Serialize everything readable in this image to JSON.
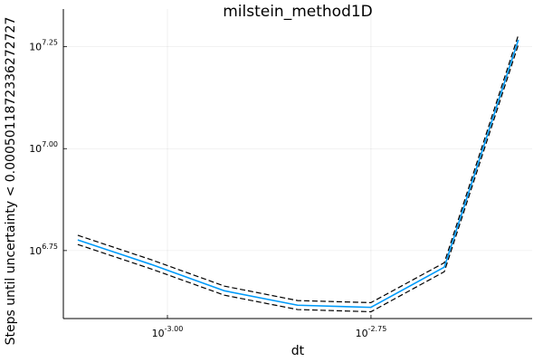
{
  "chart_data": {
    "type": "line",
    "title": "milstein_method1D",
    "x_label": "dt",
    "y_label": "Steps until uncertainty < 0.0005011872336272727",
    "x_scale": "log",
    "y_scale": "log",
    "grid": true,
    "x": [
      0.000776,
      0.000955,
      0.001175,
      0.001445,
      0.001778,
      0.002188,
      0.002698
    ],
    "series": [
      {
        "color": "#009af9",
        "dashed": false,
        "values": [
          5970000,
          5200000,
          4480000,
          4130000,
          4080000,
          5120000,
          18490000
        ]
      },
      {
        "color": "#000000",
        "dashed": true,
        "values": [
          6130000,
          5340000,
          4600000,
          4240000,
          4190000,
          5250000,
          19000000
        ]
      },
      {
        "color": "#000000",
        "dashed": true,
        "values": [
          5820000,
          5070000,
          4370000,
          4030000,
          3980000,
          4990000,
          18000000
        ]
      }
    ],
    "xlim": [
      0.000745,
      0.002805
    ],
    "ylim": [
      3830000,
      22000000
    ],
    "xticks": [
      {
        "value": 0.001,
        "label": "10",
        "exponent": "-3.00"
      },
      {
        "value": 0.0017783,
        "label": "10",
        "exponent": "-2.75"
      }
    ],
    "yticks": [
      {
        "value": 5623413,
        "label": "10",
        "exponent": "6.75"
      },
      {
        "value": 10000000,
        "label": "10",
        "exponent": "7.00"
      },
      {
        "value": 17782794,
        "label": "10",
        "exponent": "7.25"
      }
    ]
  }
}
